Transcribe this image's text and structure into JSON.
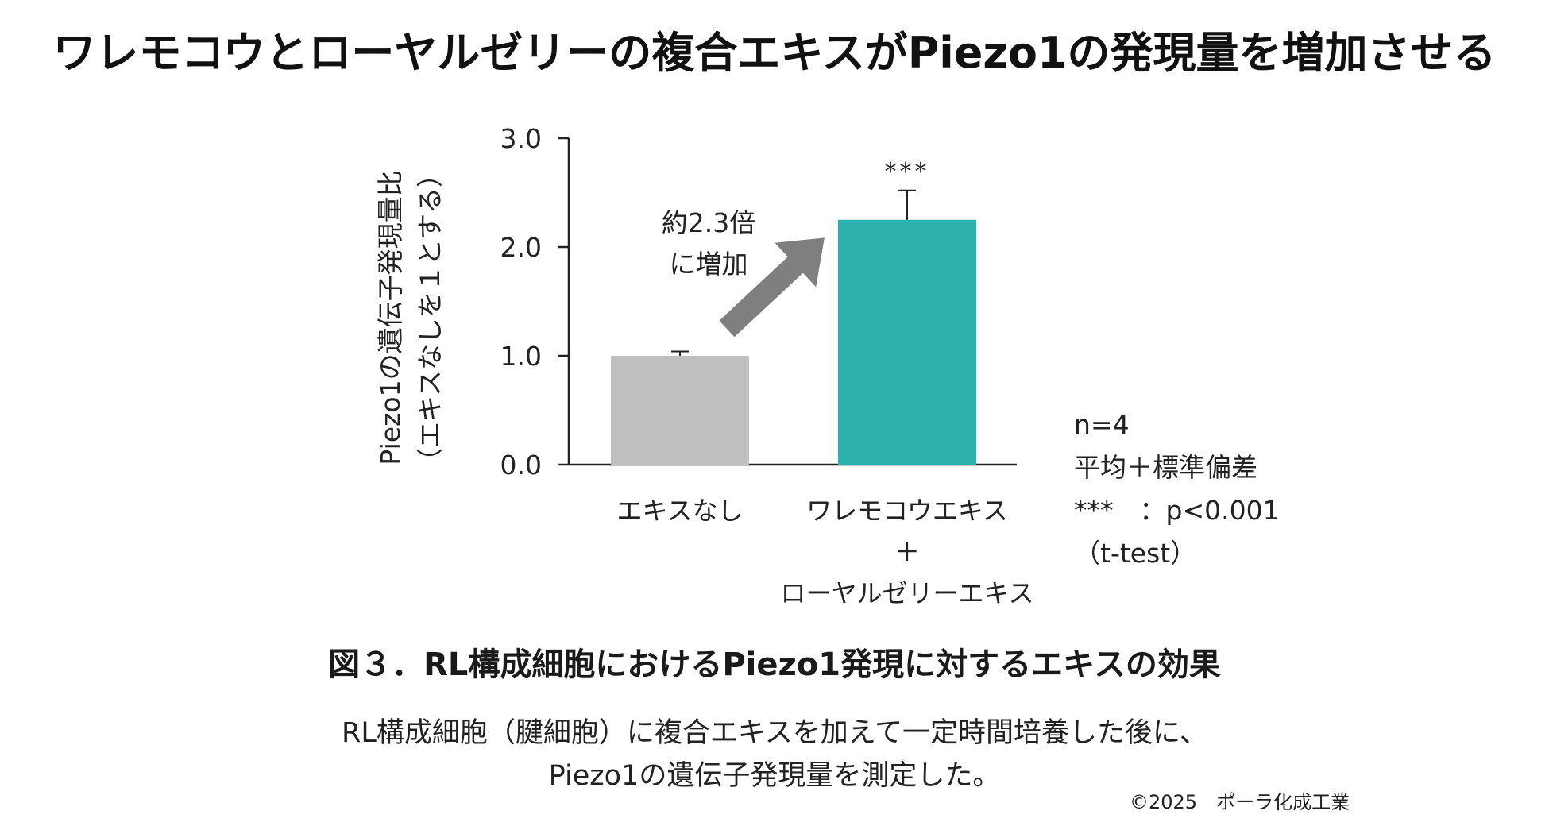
{
  "page": {
    "title": "ワレモコウとローヤルゼリーの複合エキスがPiezo1の発現量を増加させる",
    "figure_caption": "図３．RL構成細胞におけるPiezo1発現に対するエキスの効果",
    "description_lines": [
      "RL構成細胞（腱細胞）に複合エキスを加えて一定時間培養した後に、",
      "Piezo1の遺伝子発現量を測定した。"
    ],
    "copyright": "©2025　ポーラ化成工業",
    "notes": {
      "n": "n=4",
      "stat": "平均＋標準偏差",
      "significance": "***　：p<0.001",
      "test": "（t-test）"
    }
  },
  "chart_data": {
    "type": "bar",
    "categories": [
      [
        "エキスなし"
      ],
      [
        "ワレモコウエキス",
        "＋",
        "ローヤルゼリーエキス"
      ]
    ],
    "values": [
      1.0,
      2.25
    ],
    "errors": [
      0.04,
      0.27
    ],
    "bar_colors": [
      "#bfbfbf",
      "#2bb0ad"
    ],
    "significance_marks": [
      "",
      "***"
    ],
    "ylabel_lines": [
      "Piezo1の遺伝子発現量比",
      "（エキスなしを１とする）"
    ],
    "yticks": [
      "0.0",
      "1.0",
      "2.0",
      "3.0"
    ],
    "ylim": [
      0,
      3
    ],
    "annotation_lines": [
      "約2.3倍",
      "に増加"
    ],
    "arrow_color": "#7f7f7f",
    "grid": false,
    "legend": "none"
  }
}
